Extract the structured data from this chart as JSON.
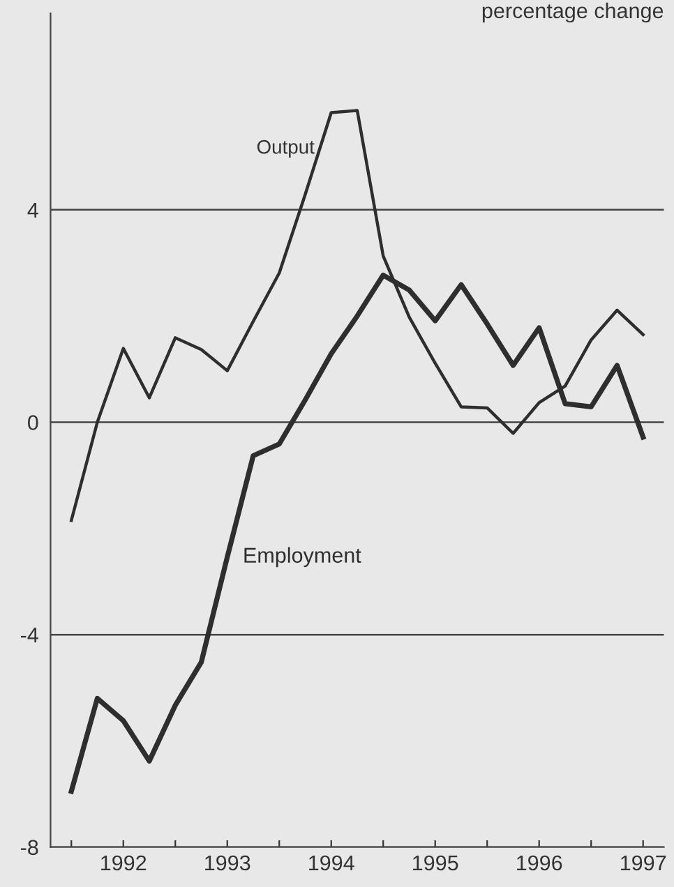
{
  "chart_data": {
    "type": "line",
    "title": "percentage change",
    "x": [
      1992.0,
      1992.25,
      1992.5,
      1992.75,
      1993.0,
      1993.25,
      1993.5,
      1993.75,
      1994.0,
      1994.25,
      1994.5,
      1994.75,
      1995.0,
      1995.25,
      1995.5,
      1995.75,
      1996.0,
      1996.25,
      1996.5,
      1996.75,
      1997.0,
      1997.25,
      1997.5
    ],
    "series": [
      {
        "name": "Output",
        "color": "#2e2e2e",
        "values": [
          -1.85,
          0.0,
          1.39,
          0.46,
          1.59,
          1.37,
          0.97,
          1.9,
          2.81,
          4.29,
          5.83,
          5.87,
          3.13,
          1.98,
          1.11,
          0.29,
          0.27,
          -0.21,
          0.37,
          0.68,
          1.55,
          2.11,
          1.65
        ]
      },
      {
        "name": "Employment",
        "color": "#2e2e2e",
        "values": [
          -6.95,
          -5.2,
          -5.62,
          -6.38,
          -5.33,
          -4.52,
          -2.54,
          -0.63,
          -0.41,
          0.42,
          1.29,
          2.0,
          2.77,
          2.49,
          1.91,
          2.59,
          1.85,
          1.07,
          1.78,
          0.35,
          0.29,
          1.07,
          -0.28
        ]
      }
    ],
    "xlim": [
      1991.8,
      1997.7
    ],
    "xticks": [
      {
        "value": 1992,
        "label": null
      },
      {
        "value": 1992.5,
        "label": "1992"
      },
      {
        "value": 1993,
        "label": null
      },
      {
        "value": 1993.5,
        "label": "1993"
      },
      {
        "value": 1994,
        "label": null
      },
      {
        "value": 1994.5,
        "label": "1994"
      },
      {
        "value": 1995,
        "label": null
      },
      {
        "value": 1995.5,
        "label": "1995"
      },
      {
        "value": 1996,
        "label": null
      },
      {
        "value": 1996.5,
        "label": "1996"
      },
      {
        "value": 1997,
        "label": null
      },
      {
        "value": 1997.5,
        "label": "1997"
      }
    ],
    "ylim": [
      -8,
      7.7
    ],
    "yticks": [
      -8,
      -4,
      0,
      4
    ],
    "grid": "y",
    "legend": false,
    "marker": "none",
    "line_style": "solid"
  }
}
